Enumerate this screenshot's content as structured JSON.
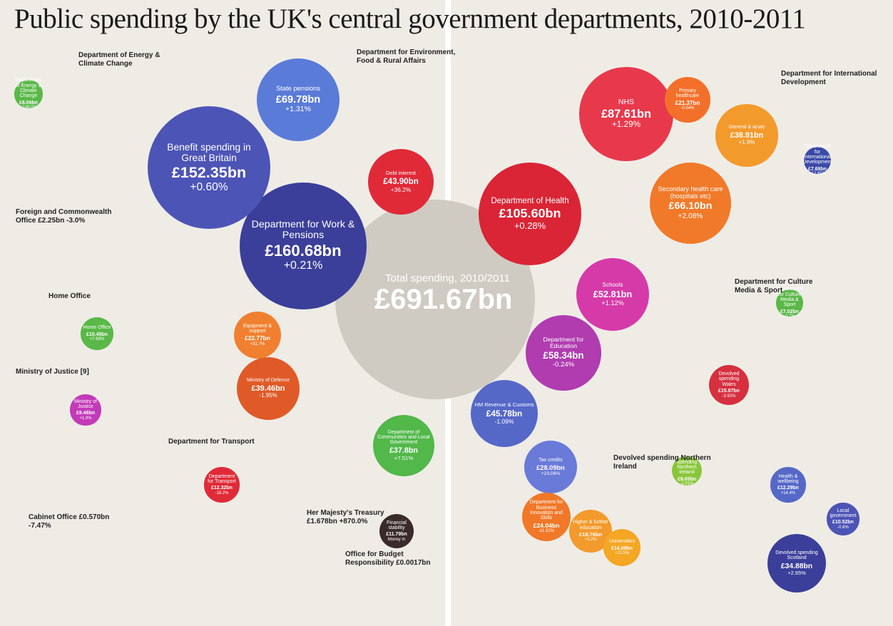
{
  "title": "Public spending by the UK's central government departments, 2010-2011",
  "total": {
    "label": "Total spending, 2010/2011",
    "amount": "£691.67bn"
  },
  "nodes": [
    {
      "name": "Department for Work & Pensions",
      "value": 160.68,
      "value_label": "£160.68bn",
      "change": "+0.21%",
      "color": "#3b3f9a"
    },
    {
      "name": "Benefit spending in Great Britain",
      "value": 152.35,
      "value_label": "£152.35bn",
      "change": "+0.60%",
      "color": "#4c54b6"
    },
    {
      "name": "State pensions",
      "value": 69.78,
      "value_label": "£69.78bn",
      "change": "+1.31%",
      "color": "#5b7bd8"
    },
    {
      "name": "Debt interest",
      "value": 43.9,
      "value_label": "£43.90bn",
      "change": "+36.2%",
      "color": "#e02a38"
    },
    {
      "name": "Department of Health",
      "value": 105.6,
      "value_label": "£105.60bn",
      "change": "+0.28%",
      "color": "#d92535"
    },
    {
      "name": "NHS",
      "value": 87.61,
      "value_label": "£87.61bn",
      "change": "+1.29%",
      "color": "#e8394c"
    },
    {
      "name": "Secondary health care (hospitals etc)",
      "value": 66.1,
      "value_label": "£66.10bn",
      "change": "+2.08%",
      "color": "#f07a2a"
    },
    {
      "name": "General & acute",
      "value": 38.91,
      "value_label": "£38.91bn",
      "change": "+1.9%",
      "color": "#f39a2c"
    },
    {
      "name": "Primary healthcare",
      "value": 21.37,
      "value_label": "£21.37bn",
      "change": "-0.54%",
      "color": "#f3702a"
    },
    {
      "name": "Schools",
      "value": 52.81,
      "value_label": "£52.81bn",
      "change": "+1.12%",
      "color": "#d63aa8"
    },
    {
      "name": "Department for Education",
      "value": 58.34,
      "value_label": "£58.34bn",
      "change": "-0.24%",
      "color": "#b03cb0"
    },
    {
      "name": "Ministry of Defence",
      "value": 39.46,
      "value_label": "£39.46bn",
      "change": "-1.95%",
      "color": "#e05a28"
    },
    {
      "name": "Department of Communities and Local Government",
      "value": 37.8,
      "value_label": "£37.8bn",
      "change": "+7.51%",
      "color": "#52b84a"
    },
    {
      "name": "HM Revenue & Customs",
      "value": 45.78,
      "value_label": "£45.78bn",
      "change": "-1.09%",
      "color": "#5568c8"
    },
    {
      "name": "Tax credits",
      "value": 28.09,
      "value_label": "£28.09bn",
      "change": "+23.06%",
      "color": "#6a7ad8"
    },
    {
      "name": "Devolved spending Scotland",
      "value": 34.88,
      "value_label": "£34.88bn",
      "change": "+2.95%",
      "color": "#3b3f9a"
    },
    {
      "name": "Devolved spending Wales",
      "value": 15.87,
      "value_label": "£15.87bn",
      "change": "-3.92%",
      "color": "#d63040"
    },
    {
      "name": "Department for Business Innovation and Skills",
      "value": 24.04,
      "value_label": "£24.04bn",
      "change": "-11.52%",
      "color": "#f07828"
    },
    {
      "name": "Higher & further education",
      "value": 18.76,
      "value_label": "£18.76bn",
      "change": "+3.2%",
      "color": "#f39a2c"
    },
    {
      "name": "Universities",
      "value": 14.09,
      "value_label": "£14.09bn",
      "change": "+11.5%",
      "color": "#f5a623"
    },
    {
      "name": "Equipment & support",
      "value": 22.77,
      "value_label": "£22.77bn",
      "change": "+31.7%",
      "color": "#f08030"
    },
    {
      "name": "Department for Transport",
      "value": 12.32,
      "value_label": "£12.32bn",
      "change": "-18.2%",
      "color": "#e02a38"
    },
    {
      "name": "Home Office",
      "value": 10.45,
      "value_label": "£10.45bn",
      "change": "+7.69%",
      "color": "#5ab848"
    },
    {
      "name": "Ministry of Justice",
      "value": 9.46,
      "value_label": "£9.46bn",
      "change": "+1.0%",
      "color": "#c23ab8"
    },
    {
      "name": "Financial stability",
      "value": 11.79,
      "value_label": "£11.79bn",
      "change": "Money in",
      "color": "#3a2a2a"
    },
    {
      "name": "Health & wellbeing",
      "value": 12.29,
      "value_label": "£12.29bn",
      "change": "+14.4%",
      "color": "#5568c8"
    },
    {
      "name": "Local government",
      "value": 10.52,
      "value_label": "£10.52bn",
      "change": "-0.8%",
      "color": "#4c54b6"
    },
    {
      "name": "Devolved spending Northern Ireland",
      "value": 9.05,
      "value_label": "£9.05bn",
      "change": "-2.01%",
      "color": "#8ac63c"
    },
    {
      "name": "Department for International Development",
      "value": 7.69,
      "value_label": "£7.69bn",
      "change": "+12.65%",
      "color": "#3a4aa8"
    },
    {
      "name": "Department for Culture Media & Sport",
      "value": 7.02,
      "value_label": "£7.02bn",
      "change": "-0.7%",
      "color": "#5ab848"
    },
    {
      "name": "Department of Energy & Climate Change",
      "value": 8.06,
      "value_label": "£8.06bn",
      "change": "+146.0%",
      "color": "#5ab848"
    }
  ],
  "labels": [
    "Foreign and Commonwealth Office £2.25bn -3.0%",
    "Home Office",
    "Ministry of Justice [9]",
    "Cabinet Office £0.570bn -7.47%",
    "Department for Transport",
    "Her Majesty's Treasury £1.678bn +870.0%",
    "Department for Environment, Food & Rural Affairs",
    "Department of Energy & Climate Change",
    "Department for Culture Media & Sport",
    "Devolved spending Northern Ireland",
    "Office for Budget Responsibility £0.0017bn",
    "Department for International Development"
  ]
}
